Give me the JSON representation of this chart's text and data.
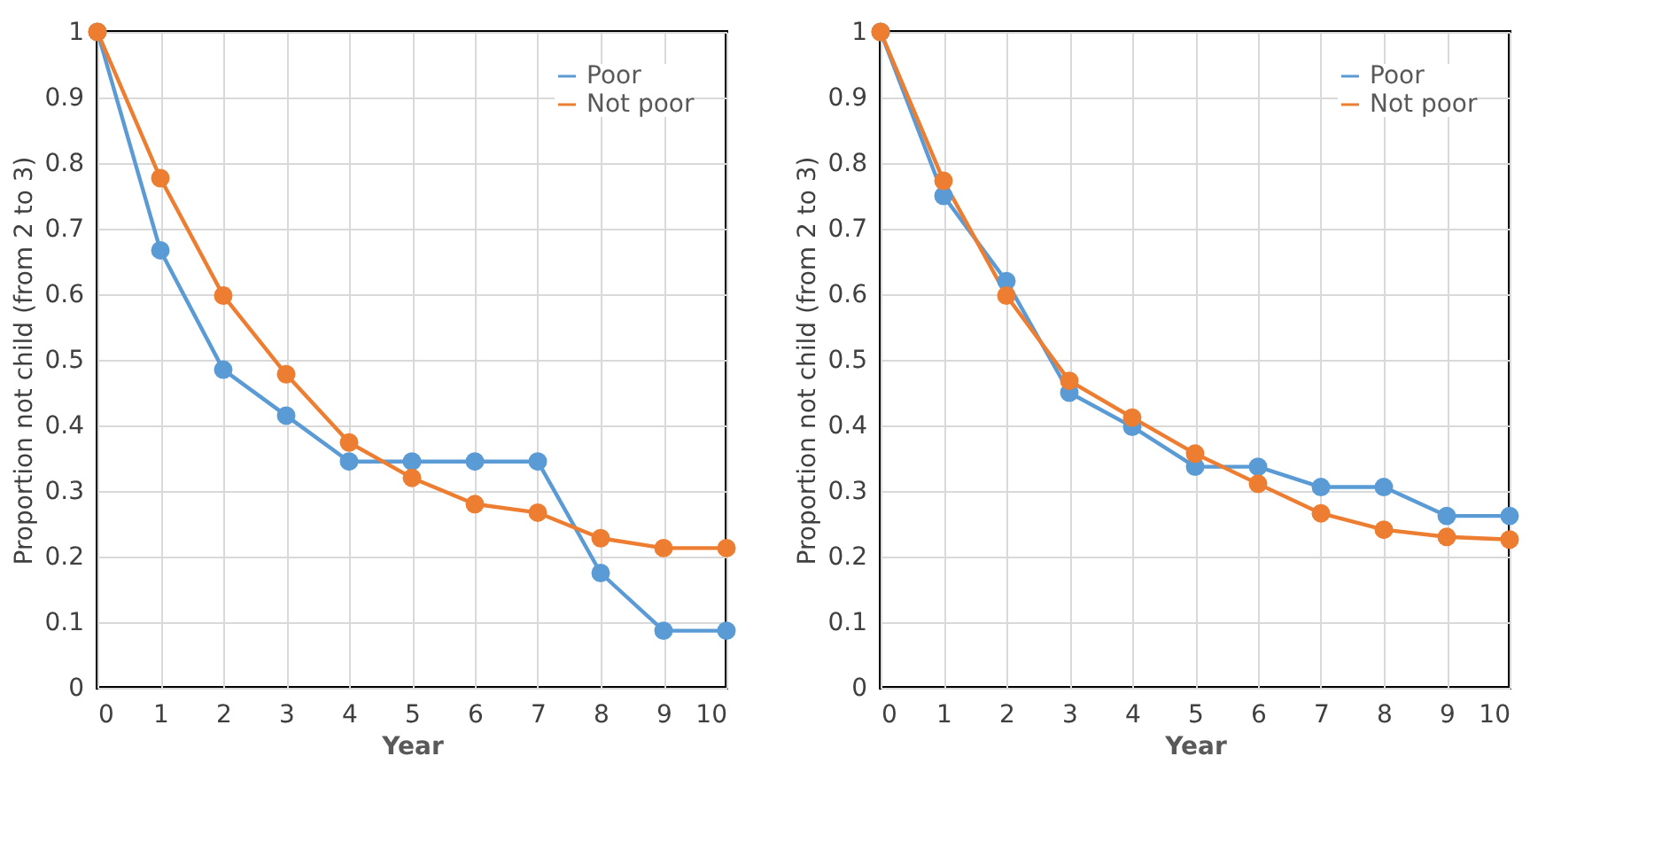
{
  "chart_data": [
    {
      "type": "line",
      "xlabel": "Year",
      "ylabel": "Proportion not child (from 2 to 3)",
      "x": [
        0,
        1,
        2,
        3,
        4,
        5,
        6,
        7,
        8,
        9,
        10
      ],
      "xlim": [
        0,
        10
      ],
      "xticks": [
        0,
        1,
        2,
        3,
        4,
        5,
        6,
        7,
        8,
        9,
        10
      ],
      "ylim": [
        0,
        1
      ],
      "yticks": [
        0,
        0.1,
        0.2,
        0.3,
        0.4,
        0.5,
        0.6,
        0.7,
        0.8,
        0.9,
        1
      ],
      "grid": true,
      "legend": "top right",
      "marker": "circle",
      "line_style": "solid",
      "series": [
        {
          "name": "Poor",
          "color": "#5b9bd5",
          "values": [
            1,
            0.667,
            0.485,
            0.415,
            0.345,
            0.345,
            0.345,
            0.345,
            0.175,
            0.087,
            0.087
          ]
        },
        {
          "name": "Not poor",
          "color": "#ed7d31",
          "values": [
            1,
            0.777,
            0.598,
            0.478,
            0.374,
            0.32,
            0.28,
            0.267,
            0.228,
            0.213,
            0.213
          ]
        }
      ]
    },
    {
      "type": "line",
      "xlabel": "Year",
      "ylabel": "Proportion not child (from 2 to 3)",
      "x": [
        0,
        1,
        2,
        3,
        4,
        5,
        6,
        7,
        8,
        9,
        10
      ],
      "xlim": [
        0,
        10
      ],
      "xticks": [
        0,
        1,
        2,
        3,
        4,
        5,
        6,
        7,
        8,
        9,
        10
      ],
      "ylim": [
        0,
        1
      ],
      "yticks": [
        0,
        0.1,
        0.2,
        0.3,
        0.4,
        0.5,
        0.6,
        0.7,
        0.8,
        0.9,
        1
      ],
      "grid": true,
      "legend": "top right",
      "marker": "circle",
      "line_style": "solid",
      "series": [
        {
          "name": "Poor",
          "color": "#5b9bd5",
          "values": [
            1,
            0.75,
            0.62,
            0.45,
            0.398,
            0.337,
            0.337,
            0.306,
            0.306,
            0.262,
            0.262
          ]
        },
        {
          "name": "Not poor",
          "color": "#ed7d31",
          "values": [
            1,
            0.773,
            0.598,
            0.468,
            0.412,
            0.357,
            0.311,
            0.266,
            0.241,
            0.23,
            0.226
          ]
        }
      ]
    }
  ]
}
